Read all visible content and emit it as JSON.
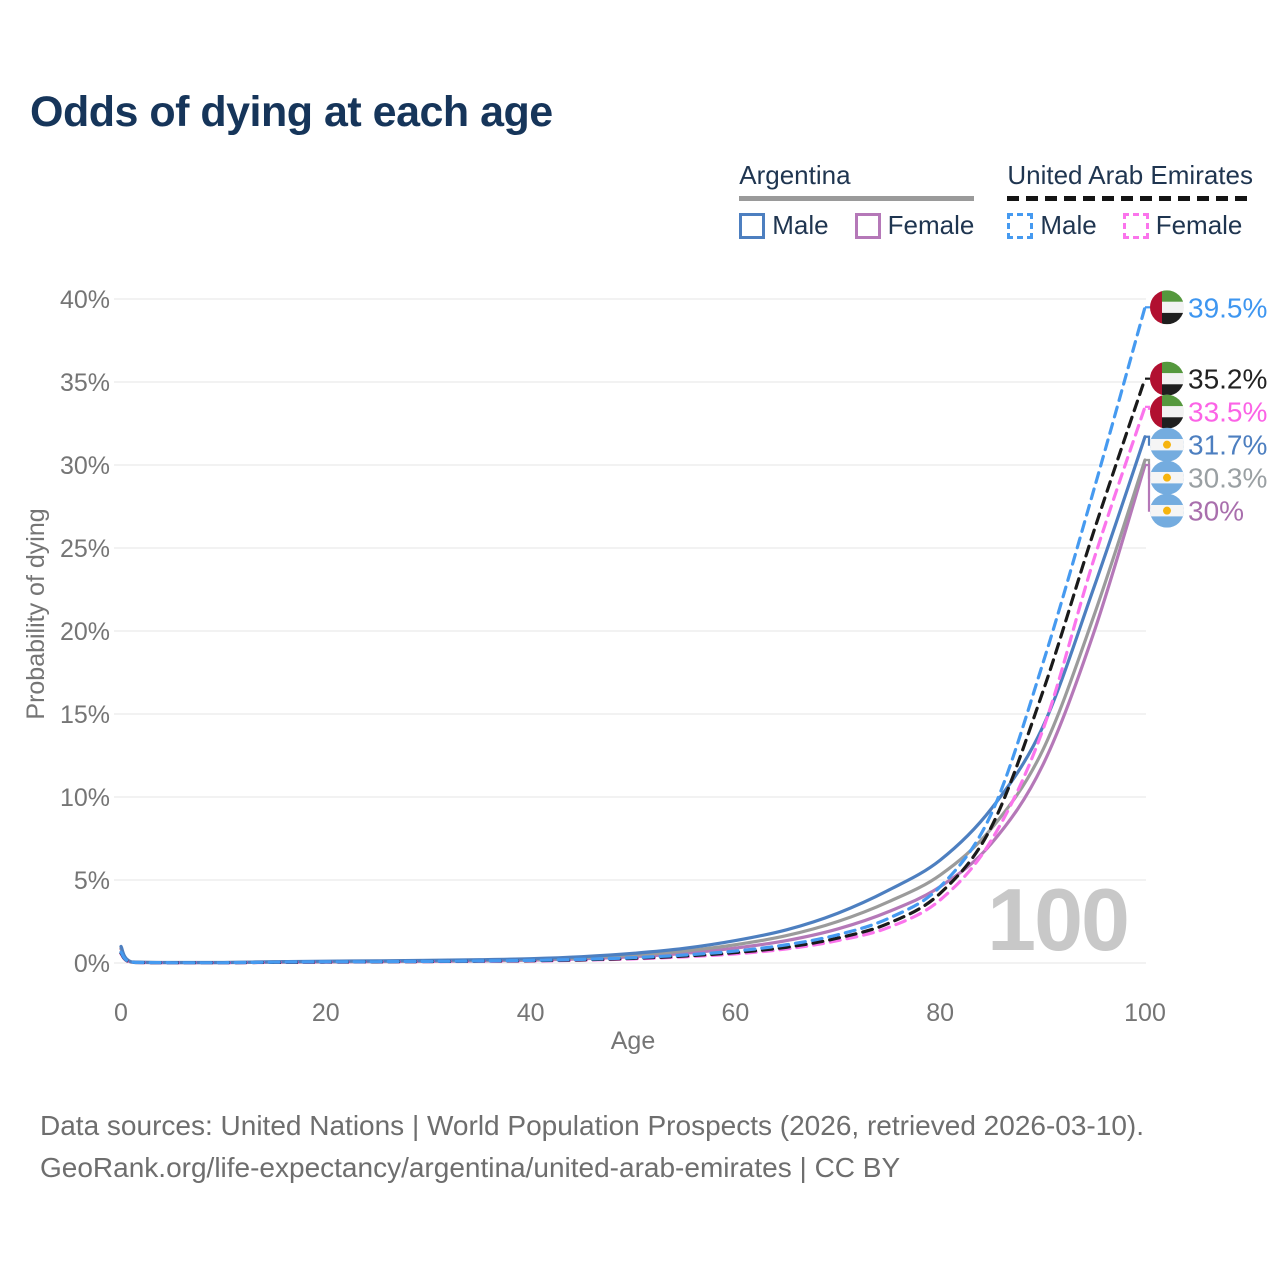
{
  "title": "Odds of dying at each age",
  "legend": {
    "groups": [
      {
        "id": "argentina",
        "label": "Argentina",
        "underline": {
          "style": "solid",
          "color": "#9a9a9a"
        },
        "items": [
          {
            "label": "Male",
            "color": "#4d7fc0",
            "dashed": false
          },
          {
            "label": "Female",
            "color": "#b578b8",
            "dashed": false
          }
        ]
      },
      {
        "id": "united-arab-emirates",
        "label": "United Arab Emirates",
        "underline": {
          "style": "dashed",
          "color": "#141414"
        },
        "items": [
          {
            "label": "Male",
            "color": "#469af0",
            "dashed": true
          },
          {
            "label": "Female",
            "color": "#fb74ec",
            "dashed": true
          }
        ]
      }
    ]
  },
  "chart_data": {
    "type": "line",
    "title": "Odds of dying at each age",
    "xlabel": "Age",
    "ylabel": "Probability of dying",
    "xlim": [
      0,
      100
    ],
    "ylim": [
      0,
      40
    ],
    "x_ticks": [
      0,
      20,
      40,
      60,
      80,
      100
    ],
    "y_ticks": [
      0,
      5,
      10,
      15,
      20,
      25,
      30,
      35,
      40
    ],
    "y_tick_suffix": "%",
    "grid": "horizontal",
    "legend_position": "top-right",
    "watermark_age": "100",
    "x": [
      0,
      1,
      5,
      10,
      15,
      20,
      25,
      30,
      35,
      40,
      45,
      50,
      55,
      60,
      65,
      70,
      75,
      80,
      85,
      90,
      95,
      100
    ],
    "series": [
      {
        "id": "uae-male",
        "name": "United Arab Emirates Male",
        "country": "United Arab Emirates",
        "sex": "Male",
        "flag": "ae",
        "color": "#469af0",
        "label_color": "#3e96f0",
        "dashed": true,
        "end_label": "39.5%",
        "end_value": 39.5,
        "values": [
          0.65,
          0.05,
          0.02,
          0.02,
          0.05,
          0.07,
          0.08,
          0.1,
          0.12,
          0.16,
          0.22,
          0.32,
          0.48,
          0.72,
          1.1,
          1.7,
          2.7,
          4.6,
          9.0,
          18.0,
          28.5,
          39.5
        ]
      },
      {
        "id": "uae-both",
        "name": "United Arab Emirates Both sexes",
        "country": "United Arab Emirates",
        "sex": "Both",
        "flag": "ae",
        "color": "#1a1a1a",
        "label_color": "#222222",
        "dashed": true,
        "end_label": "35.2%",
        "end_value": 35.2,
        "values": [
          0.6,
          0.045,
          0.018,
          0.018,
          0.04,
          0.055,
          0.07,
          0.09,
          0.11,
          0.14,
          0.19,
          0.28,
          0.42,
          0.63,
          0.95,
          1.5,
          2.4,
          4.2,
          8.2,
          16.3,
          26.0,
          35.2
        ]
      },
      {
        "id": "uae-female",
        "name": "United Arab Emirates Female",
        "country": "United Arab Emirates",
        "sex": "Female",
        "flag": "ae",
        "color": "#fb74ec",
        "label_color": "#fb63e6",
        "dashed": true,
        "end_label": "33.5%",
        "end_value": 33.5,
        "values": [
          0.55,
          0.04,
          0.015,
          0.015,
          0.035,
          0.05,
          0.06,
          0.08,
          0.1,
          0.12,
          0.17,
          0.25,
          0.37,
          0.55,
          0.85,
          1.35,
          2.15,
          3.8,
          7.4,
          14.0,
          24.3,
          33.5
        ]
      },
      {
        "id": "argentina-male",
        "name": "Argentina Male",
        "country": "Argentina",
        "sex": "Male",
        "flag": "ar",
        "color": "#4d7fc0",
        "label_color": "#4d7fc0",
        "dashed": false,
        "end_label": "31.7%",
        "end_value": 31.7,
        "values": [
          1.0,
          0.07,
          0.03,
          0.03,
          0.08,
          0.11,
          0.13,
          0.16,
          0.2,
          0.26,
          0.38,
          0.58,
          0.88,
          1.35,
          2.0,
          3.0,
          4.4,
          6.2,
          9.3,
          14.2,
          22.6,
          31.7
        ]
      },
      {
        "id": "argentina-both",
        "name": "Argentina Both sexes",
        "country": "Argentina",
        "sex": "Both",
        "flag": "ar",
        "color": "#9b9b9b",
        "label_color": "#9aa0a3",
        "dashed": false,
        "end_label": "30.3%",
        "end_value": 30.3,
        "values": [
          0.9,
          0.06,
          0.025,
          0.025,
          0.06,
          0.08,
          0.1,
          0.13,
          0.16,
          0.21,
          0.31,
          0.47,
          0.72,
          1.1,
          1.65,
          2.5,
          3.7,
          5.3,
          8.1,
          12.8,
          20.9,
          30.3
        ]
      },
      {
        "id": "argentina-female",
        "name": "Argentina Female",
        "country": "Argentina",
        "sex": "Female",
        "flag": "ar",
        "color": "#b578b8",
        "label_color": "#a96fad",
        "dashed": false,
        "end_label": "30%",
        "end_value": 30,
        "values": [
          0.85,
          0.05,
          0.02,
          0.02,
          0.045,
          0.06,
          0.08,
          0.1,
          0.13,
          0.17,
          0.25,
          0.38,
          0.58,
          0.9,
          1.35,
          2.05,
          3.1,
          4.6,
          7.2,
          11.9,
          19.9,
          30.0
        ]
      }
    ],
    "flag_colors": {
      "ae": {
        "red": "#b11030",
        "green": "#55983d",
        "white": "#f2f2f2",
        "black": "#1f1f1f"
      },
      "ar": {
        "blue": "#74acdf",
        "white": "#f5f5f5",
        "sun": "#f6b40e"
      }
    }
  },
  "footer": {
    "line1": "Data sources: United Nations | World Population Prospects (2026, retrieved 2026-03-10).",
    "line2": "GeoRank.org/life-expectancy/argentina/united-arab-emirates | CC BY"
  }
}
